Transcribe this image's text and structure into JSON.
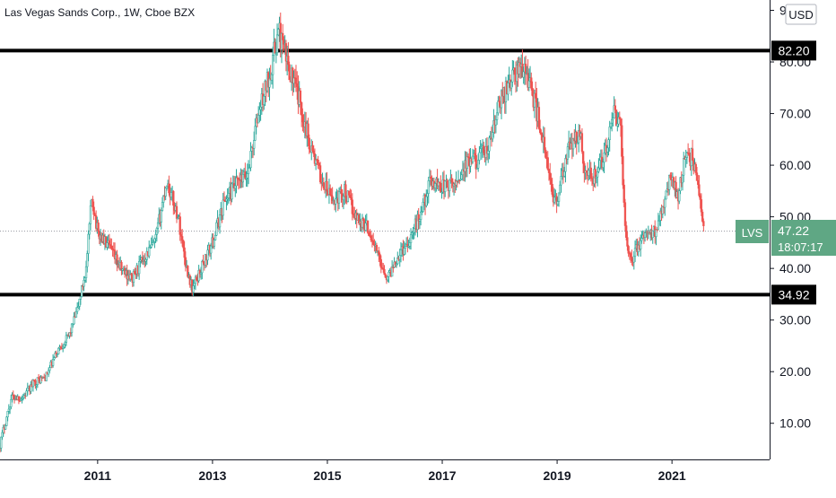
{
  "header": {
    "symbol_title": "Las Vegas Sands Corp., 1W, Cboe BZX"
  },
  "colors": {
    "up": "#26a69a",
    "down": "#ef5350",
    "candle_up_body": "#cfe9e4",
    "axis": "#131722",
    "grid_dotted": "#9598a1",
    "last_price_bg": "#5fa784",
    "level_line": "#000000"
  },
  "chart_data": {
    "type": "candlestick",
    "currency": "USD",
    "timeframe": "1W",
    "x_tick_labels": [
      "2011",
      "2013",
      "2015",
      "2017",
      "2019",
      "2021"
    ],
    "x_range": [
      2009.3,
      2022.7
    ],
    "y_tick_labels": [
      "10.00",
      "20.00",
      "30.00",
      "40.00",
      "50.00",
      "60.00",
      "70.00",
      "80.00",
      "90.00"
    ],
    "y_range": [
      3.0,
      92.0
    ],
    "horizontal_levels": [
      {
        "value": 82.2,
        "label": "82.20"
      },
      {
        "value": 34.92,
        "label": "34.92"
      }
    ],
    "last_price": {
      "symbol": "LVS",
      "value": 47.22,
      "label": "47.22",
      "countdown": "18:07:17"
    },
    "approx_path": [
      [
        2009.3,
        6
      ],
      [
        2009.5,
        15
      ],
      [
        2009.7,
        15
      ],
      [
        2009.9,
        18
      ],
      [
        2010.1,
        19
      ],
      [
        2010.3,
        24
      ],
      [
        2010.5,
        27
      ],
      [
        2010.65,
        32
      ],
      [
        2010.8,
        40
      ],
      [
        2010.9,
        54
      ],
      [
        2011.0,
        47
      ],
      [
        2011.2,
        44
      ],
      [
        2011.4,
        40
      ],
      [
        2011.6,
        38
      ],
      [
        2011.8,
        42
      ],
      [
        2012.0,
        45
      ],
      [
        2012.2,
        57
      ],
      [
        2012.4,
        50
      ],
      [
        2012.55,
        40
      ],
      [
        2012.65,
        36
      ],
      [
        2012.8,
        40
      ],
      [
        2013.0,
        45
      ],
      [
        2013.2,
        53
      ],
      [
        2013.4,
        56
      ],
      [
        2013.6,
        58
      ],
      [
        2013.8,
        70
      ],
      [
        2014.0,
        78
      ],
      [
        2014.15,
        86
      ],
      [
        2014.3,
        80
      ],
      [
        2014.5,
        73
      ],
      [
        2014.7,
        64
      ],
      [
        2014.9,
        57
      ],
      [
        2015.1,
        53
      ],
      [
        2015.3,
        55
      ],
      [
        2015.5,
        50
      ],
      [
        2015.7,
        48
      ],
      [
        2015.9,
        42
      ],
      [
        2016.05,
        38
      ],
      [
        2016.2,
        42
      ],
      [
        2016.4,
        45
      ],
      [
        2016.6,
        50
      ],
      [
        2016.8,
        57
      ],
      [
        2017.0,
        56
      ],
      [
        2017.2,
        56
      ],
      [
        2017.4,
        60
      ],
      [
        2017.6,
        61
      ],
      [
        2017.8,
        63
      ],
      [
        2018.0,
        72
      ],
      [
        2018.2,
        77
      ],
      [
        2018.4,
        79
      ],
      [
        2018.5,
        77
      ],
      [
        2018.7,
        68
      ],
      [
        2018.9,
        55
      ],
      [
        2019.0,
        53
      ],
      [
        2019.2,
        63
      ],
      [
        2019.4,
        66
      ],
      [
        2019.5,
        58
      ],
      [
        2019.7,
        58
      ],
      [
        2019.9,
        65
      ],
      [
        2020.0,
        70
      ],
      [
        2020.1,
        68
      ],
      [
        2020.2,
        45
      ],
      [
        2020.3,
        42
      ],
      [
        2020.5,
        46
      ],
      [
        2020.7,
        47
      ],
      [
        2020.9,
        55
      ],
      [
        2021.0,
        58
      ],
      [
        2021.1,
        54
      ],
      [
        2021.2,
        60
      ],
      [
        2021.35,
        62
      ],
      [
        2021.45,
        56
      ],
      [
        2021.55,
        48
      ]
    ]
  }
}
